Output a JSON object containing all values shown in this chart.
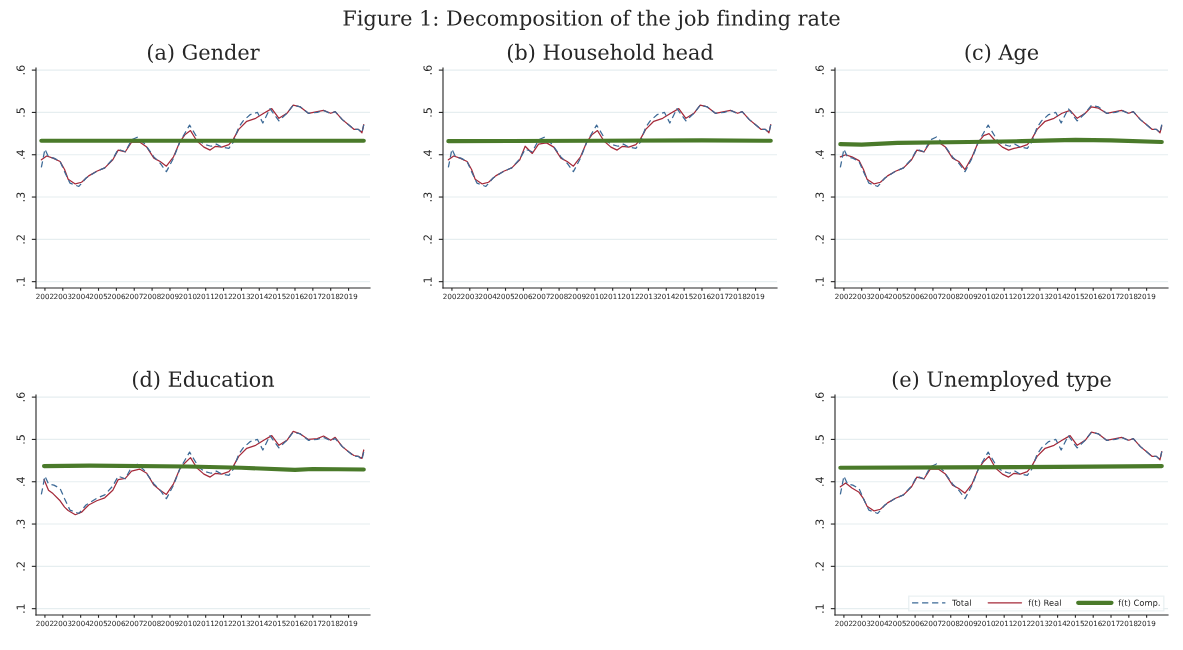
{
  "chart_data": [
    {
      "type": "line",
      "title": "(a) Gender",
      "annotations": [
        "Figure 1: Decomposition of the job finding rate"
      ],
      "grid": "y",
      "legend": false,
      "marker": "none",
      "xlim": [
        2001.5,
        2020.2
      ],
      "xticks": [
        2002,
        2003,
        2004,
        2005,
        2006,
        2007,
        2008,
        2009,
        2010,
        2011,
        2012,
        2013,
        2014,
        2015,
        2016,
        2017,
        2018,
        2019
      ],
      "ylim": [
        0.085,
        0.605
      ],
      "yticks": [
        {
          "value": 0.1,
          "label": ".1"
        },
        {
          "value": 0.2,
          "label": ".2"
        },
        {
          "value": 0.3,
          "label": ".3"
        },
        {
          "value": 0.4,
          "label": ".4"
        },
        {
          "value": 0.5,
          "label": ".5"
        },
        {
          "value": 0.6,
          "label": ".6"
        }
      ],
      "series": [
        {
          "color": "#3d6a96",
          "line_style": "dashed",
          "x": [
            2001.8,
            2002.0,
            2002.2,
            2002.5,
            2002.85,
            2003.1,
            2003.4,
            2003.9,
            2004.3,
            2004.9,
            2005.35,
            2005.8,
            2006.1,
            2006.5,
            2006.85,
            2007.2,
            2007.6,
            2008.1,
            2008.45,
            2008.8,
            2009.2,
            2009.55,
            2009.85,
            2010.1,
            2010.6,
            2010.9,
            2011.3,
            2011.6,
            2011.9,
            2012.3,
            2012.55,
            2012.85,
            2013.1,
            2013.5,
            2013.9,
            2014.2,
            2014.6,
            2015.1,
            2015.55,
            2015.9,
            2016.3,
            2016.75,
            2017.25,
            2017.6,
            2018.0,
            2018.25,
            2018.65,
            2019.0,
            2019.3,
            2019.55,
            2019.75,
            2019.85
          ],
          "values": [
            0.37,
            0.413,
            0.395,
            0.392,
            0.384,
            0.36,
            0.333,
            0.325,
            0.345,
            0.361,
            0.369,
            0.39,
            0.413,
            0.407,
            0.435,
            0.442,
            0.425,
            0.395,
            0.38,
            0.36,
            0.392,
            0.43,
            0.452,
            0.47,
            0.435,
            0.425,
            0.42,
            0.425,
            0.418,
            0.415,
            0.43,
            0.465,
            0.48,
            0.495,
            0.5,
            0.475,
            0.509,
            0.48,
            0.498,
            0.517,
            0.513,
            0.498,
            0.5,
            0.505,
            0.497,
            0.502,
            0.483,
            0.471,
            0.46,
            0.46,
            0.452,
            0.471
          ]
        },
        {
          "color": "#a52a3a",
          "line_style": "solid",
          "x": [
            2001.8,
            2002.1,
            2002.45,
            2002.85,
            2003.1,
            2003.3,
            2003.7,
            2004.05,
            2004.45,
            2004.9,
            2005.35,
            2005.8,
            2006.1,
            2006.5,
            2006.85,
            2007.3,
            2007.7,
            2008.1,
            2008.45,
            2008.8,
            2009.2,
            2009.55,
            2009.85,
            2010.15,
            2010.5,
            2010.9,
            2011.25,
            2011.55,
            2011.9,
            2012.3,
            2012.55,
            2012.85,
            2013.3,
            2013.8,
            2014.25,
            2014.7,
            2015.1,
            2015.55,
            2015.9,
            2016.3,
            2016.75,
            2017.25,
            2017.6,
            2018.0,
            2018.25,
            2018.65,
            2019.0,
            2019.3,
            2019.55,
            2019.75,
            2019.85
          ],
          "values": [
            0.388,
            0.397,
            0.392,
            0.384,
            0.365,
            0.342,
            0.331,
            0.335,
            0.35,
            0.361,
            0.369,
            0.388,
            0.411,
            0.407,
            0.43,
            0.43,
            0.418,
            0.392,
            0.384,
            0.373,
            0.395,
            0.43,
            0.448,
            0.457,
            0.433,
            0.418,
            0.411,
            0.42,
            0.418,
            0.424,
            0.437,
            0.46,
            0.479,
            0.486,
            0.498,
            0.509,
            0.486,
            0.498,
            0.517,
            0.513,
            0.498,
            0.502,
            0.505,
            0.498,
            0.502,
            0.483,
            0.471,
            0.46,
            0.46,
            0.452,
            0.471
          ]
        },
        {
          "color": "#4a7a2a",
          "line_style": "solid",
          "x": [
            2001.8,
            2019.85
          ],
          "values": [
            0.433,
            0.433
          ]
        }
      ]
    },
    {
      "type": "line",
      "title": "(b) Household head",
      "grid": "y",
      "legend": false,
      "marker": "none",
      "xlim": [
        2001.5,
        2020.2
      ],
      "xticks": [
        2002,
        2003,
        2004,
        2005,
        2006,
        2007,
        2008,
        2009,
        2010,
        2011,
        2012,
        2013,
        2014,
        2015,
        2016,
        2017,
        2018,
        2019
      ],
      "ylim": [
        0.085,
        0.605
      ],
      "yticks": [
        {
          "value": 0.1,
          "label": ".1"
        },
        {
          "value": 0.2,
          "label": ".2"
        },
        {
          "value": 0.3,
          "label": ".3"
        },
        {
          "value": 0.4,
          "label": ".4"
        },
        {
          "value": 0.5,
          "label": ".5"
        },
        {
          "value": 0.6,
          "label": ".6"
        }
      ],
      "series": [
        {
          "color": "#3d6a96",
          "line_style": "dashed",
          "x": [
            2001.8,
            2002.0,
            2002.2,
            2002.5,
            2002.85,
            2003.1,
            2003.4,
            2003.9,
            2004.3,
            2004.9,
            2005.35,
            2005.8,
            2006.1,
            2006.5,
            2006.85,
            2007.2,
            2007.6,
            2008.1,
            2008.45,
            2008.8,
            2009.2,
            2009.55,
            2009.85,
            2010.1,
            2010.6,
            2010.9,
            2011.3,
            2011.6,
            2011.9,
            2012.3,
            2012.55,
            2012.85,
            2013.1,
            2013.5,
            2013.9,
            2014.2,
            2014.6,
            2015.1,
            2015.55,
            2015.9,
            2016.3,
            2016.75,
            2017.25,
            2017.6,
            2018.0,
            2018.25,
            2018.65,
            2019.0,
            2019.3,
            2019.55,
            2019.75,
            2019.85
          ],
          "values": [
            0.37,
            0.413,
            0.395,
            0.392,
            0.384,
            0.36,
            0.333,
            0.325,
            0.345,
            0.361,
            0.369,
            0.39,
            0.413,
            0.407,
            0.435,
            0.442,
            0.425,
            0.395,
            0.38,
            0.36,
            0.392,
            0.43,
            0.452,
            0.47,
            0.435,
            0.425,
            0.42,
            0.425,
            0.418,
            0.415,
            0.43,
            0.465,
            0.48,
            0.495,
            0.5,
            0.475,
            0.509,
            0.48,
            0.498,
            0.517,
            0.513,
            0.498,
            0.5,
            0.505,
            0.497,
            0.502,
            0.483,
            0.471,
            0.46,
            0.46,
            0.452,
            0.471
          ]
        },
        {
          "color": "#a52a3a",
          "line_style": "solid",
          "x": [
            2001.8,
            2002.1,
            2002.45,
            2002.85,
            2003.1,
            2003.3,
            2003.7,
            2004.05,
            2004.45,
            2004.9,
            2005.35,
            2005.8,
            2006.1,
            2006.5,
            2006.85,
            2007.3,
            2007.7,
            2008.1,
            2008.45,
            2008.8,
            2009.2,
            2009.55,
            2009.85,
            2010.15,
            2010.5,
            2010.9,
            2011.25,
            2011.55,
            2011.9,
            2012.3,
            2012.55,
            2012.85,
            2013.3,
            2013.8,
            2014.25,
            2014.7,
            2015.1,
            2015.55,
            2015.9,
            2016.3,
            2016.75,
            2017.25,
            2017.6,
            2018.0,
            2018.25,
            2018.65,
            2019.0,
            2019.3,
            2019.55,
            2019.75,
            2019.85
          ],
          "values": [
            0.388,
            0.397,
            0.392,
            0.384,
            0.365,
            0.342,
            0.331,
            0.335,
            0.35,
            0.361,
            0.369,
            0.388,
            0.42,
            0.403,
            0.425,
            0.428,
            0.418,
            0.392,
            0.384,
            0.373,
            0.395,
            0.43,
            0.448,
            0.457,
            0.433,
            0.418,
            0.411,
            0.42,
            0.418,
            0.424,
            0.437,
            0.46,
            0.479,
            0.486,
            0.498,
            0.509,
            0.486,
            0.498,
            0.517,
            0.513,
            0.498,
            0.502,
            0.505,
            0.498,
            0.502,
            0.483,
            0.471,
            0.46,
            0.46,
            0.452,
            0.471
          ]
        },
        {
          "color": "#4a7a2a",
          "line_style": "solid",
          "x": [
            2001.8,
            2010.0,
            2016.0,
            2019.85
          ],
          "values": [
            0.432,
            0.433,
            0.434,
            0.433
          ]
        }
      ]
    },
    {
      "type": "line",
      "title": "(c) Age",
      "grid": "y",
      "legend": false,
      "marker": "none",
      "xlim": [
        2001.5,
        2020.2
      ],
      "xticks": [
        2002,
        2003,
        2004,
        2005,
        2006,
        2007,
        2008,
        2009,
        2010,
        2011,
        2012,
        2013,
        2014,
        2015,
        2016,
        2017,
        2018,
        2019
      ],
      "ylim": [
        0.085,
        0.605
      ],
      "yticks": [
        {
          "value": 0.1,
          "label": ".1"
        },
        {
          "value": 0.2,
          "label": ".2"
        },
        {
          "value": 0.3,
          "label": ".3"
        },
        {
          "value": 0.4,
          "label": ".4"
        },
        {
          "value": 0.5,
          "label": ".5"
        },
        {
          "value": 0.6,
          "label": ".6"
        }
      ],
      "series": [
        {
          "color": "#3d6a96",
          "line_style": "dashed",
          "x": [
            2001.8,
            2002.0,
            2002.2,
            2002.5,
            2002.85,
            2003.1,
            2003.4,
            2003.9,
            2004.3,
            2004.9,
            2005.35,
            2005.8,
            2006.1,
            2006.5,
            2006.85,
            2007.2,
            2007.6,
            2008.1,
            2008.45,
            2008.8,
            2009.2,
            2009.55,
            2009.85,
            2010.1,
            2010.6,
            2010.9,
            2011.3,
            2011.6,
            2011.9,
            2012.3,
            2012.55,
            2012.85,
            2013.1,
            2013.5,
            2013.9,
            2014.2,
            2014.6,
            2015.1,
            2015.55,
            2015.9,
            2016.3,
            2016.75,
            2017.25,
            2017.6,
            2018.0,
            2018.25,
            2018.65,
            2019.0,
            2019.3,
            2019.55,
            2019.75,
            2019.85
          ],
          "values": [
            0.37,
            0.413,
            0.395,
            0.392,
            0.384,
            0.36,
            0.333,
            0.325,
            0.345,
            0.361,
            0.369,
            0.39,
            0.413,
            0.407,
            0.435,
            0.442,
            0.425,
            0.395,
            0.38,
            0.36,
            0.392,
            0.43,
            0.452,
            0.47,
            0.435,
            0.425,
            0.42,
            0.425,
            0.418,
            0.415,
            0.43,
            0.465,
            0.48,
            0.495,
            0.5,
            0.475,
            0.509,
            0.48,
            0.498,
            0.517,
            0.513,
            0.498,
            0.5,
            0.505,
            0.497,
            0.502,
            0.483,
            0.471,
            0.46,
            0.46,
            0.452,
            0.471
          ]
        },
        {
          "color": "#a52a3a",
          "line_style": "solid",
          "x": [
            2001.8,
            2002.1,
            2002.45,
            2002.85,
            2003.1,
            2003.3,
            2003.7,
            2004.05,
            2004.45,
            2004.9,
            2005.35,
            2005.8,
            2006.1,
            2006.5,
            2006.85,
            2007.3,
            2007.7,
            2008.1,
            2008.45,
            2008.8,
            2009.2,
            2009.55,
            2009.85,
            2010.15,
            2010.5,
            2010.9,
            2011.25,
            2011.55,
            2011.9,
            2012.3,
            2012.55,
            2012.85,
            2013.3,
            2013.8,
            2014.25,
            2014.7,
            2015.1,
            2015.55,
            2015.9,
            2016.3,
            2016.75,
            2017.25,
            2017.6,
            2018.0,
            2018.25,
            2018.65,
            2019.0,
            2019.3,
            2019.55,
            2019.75,
            2019.85
          ],
          "values": [
            0.395,
            0.4,
            0.395,
            0.386,
            0.365,
            0.342,
            0.331,
            0.335,
            0.35,
            0.361,
            0.369,
            0.388,
            0.411,
            0.407,
            0.43,
            0.43,
            0.418,
            0.392,
            0.384,
            0.365,
            0.395,
            0.43,
            0.445,
            0.45,
            0.433,
            0.418,
            0.411,
            0.415,
            0.418,
            0.424,
            0.437,
            0.46,
            0.479,
            0.486,
            0.498,
            0.505,
            0.486,
            0.498,
            0.513,
            0.51,
            0.498,
            0.502,
            0.505,
            0.498,
            0.502,
            0.483,
            0.471,
            0.46,
            0.46,
            0.452,
            0.468
          ]
        },
        {
          "color": "#4a7a2a",
          "line_style": "solid",
          "x": [
            2001.8,
            2003.0,
            2005.0,
            2009.0,
            2012.0,
            2015.0,
            2017.0,
            2019.85
          ],
          "values": [
            0.425,
            0.424,
            0.428,
            0.43,
            0.432,
            0.435,
            0.434,
            0.43
          ]
        }
      ]
    },
    {
      "type": "line",
      "title": "(d) Education",
      "grid": "y",
      "legend": false,
      "marker": "none",
      "xlim": [
        2001.5,
        2020.2
      ],
      "xticks": [
        2002,
        2003,
        2004,
        2005,
        2006,
        2007,
        2008,
        2009,
        2010,
        2011,
        2012,
        2013,
        2014,
        2015,
        2016,
        2017,
        2018,
        2019
      ],
      "ylim": [
        0.085,
        0.605
      ],
      "yticks": [
        {
          "value": 0.1,
          "label": ".1"
        },
        {
          "value": 0.2,
          "label": ".2"
        },
        {
          "value": 0.3,
          "label": ".3"
        },
        {
          "value": 0.4,
          "label": ".4"
        },
        {
          "value": 0.5,
          "label": ".5"
        },
        {
          "value": 0.6,
          "label": ".6"
        }
      ],
      "series": [
        {
          "color": "#3d6a96",
          "line_style": "dashed",
          "x": [
            2001.8,
            2002.0,
            2002.2,
            2002.5,
            2002.85,
            2003.1,
            2003.4,
            2003.9,
            2004.3,
            2004.9,
            2005.35,
            2005.8,
            2006.1,
            2006.5,
            2006.85,
            2007.2,
            2007.6,
            2008.1,
            2008.45,
            2008.8,
            2009.2,
            2009.55,
            2009.85,
            2010.1,
            2010.6,
            2010.9,
            2011.3,
            2011.6,
            2011.9,
            2012.3,
            2012.55,
            2012.85,
            2013.1,
            2013.5,
            2013.9,
            2014.2,
            2014.6,
            2015.1,
            2015.55,
            2015.9,
            2016.3,
            2016.75,
            2017.25,
            2017.6,
            2018.0,
            2018.25,
            2018.65,
            2019.0,
            2019.3,
            2019.55,
            2019.75,
            2019.85
          ],
          "values": [
            0.37,
            0.413,
            0.395,
            0.392,
            0.384,
            0.36,
            0.333,
            0.325,
            0.345,
            0.361,
            0.369,
            0.39,
            0.413,
            0.407,
            0.435,
            0.442,
            0.425,
            0.395,
            0.38,
            0.36,
            0.392,
            0.43,
            0.452,
            0.47,
            0.435,
            0.425,
            0.42,
            0.425,
            0.418,
            0.415,
            0.43,
            0.465,
            0.48,
            0.495,
            0.5,
            0.475,
            0.509,
            0.48,
            0.498,
            0.517,
            0.513,
            0.498,
            0.5,
            0.505,
            0.497,
            0.502,
            0.483,
            0.471,
            0.46,
            0.46,
            0.452,
            0.471
          ]
        },
        {
          "color": "#a52a3a",
          "line_style": "solid",
          "x": [
            2001.95,
            2002.2,
            2002.45,
            2002.85,
            2003.1,
            2003.3,
            2003.7,
            2004.05,
            2004.45,
            2004.9,
            2005.35,
            2005.8,
            2006.1,
            2006.5,
            2006.85,
            2007.3,
            2007.7,
            2008.1,
            2008.45,
            2008.8,
            2009.2,
            2009.55,
            2009.85,
            2010.15,
            2010.5,
            2010.9,
            2011.25,
            2011.55,
            2011.9,
            2012.3,
            2012.55,
            2012.85,
            2013.3,
            2013.8,
            2014.25,
            2014.7,
            2015.1,
            2015.55,
            2015.9,
            2016.3,
            2016.75,
            2017.25,
            2017.6,
            2018.0,
            2018.25,
            2018.65,
            2019.0,
            2019.3,
            2019.55,
            2019.75,
            2019.85
          ],
          "values": [
            0.405,
            0.38,
            0.372,
            0.355,
            0.34,
            0.332,
            0.322,
            0.328,
            0.345,
            0.355,
            0.362,
            0.38,
            0.405,
            0.408,
            0.425,
            0.43,
            0.42,
            0.392,
            0.38,
            0.37,
            0.395,
            0.43,
            0.445,
            0.457,
            0.433,
            0.418,
            0.411,
            0.42,
            0.418,
            0.424,
            0.437,
            0.46,
            0.479,
            0.486,
            0.498,
            0.509,
            0.486,
            0.498,
            0.519,
            0.513,
            0.5,
            0.502,
            0.508,
            0.498,
            0.505,
            0.483,
            0.471,
            0.462,
            0.46,
            0.455,
            0.475
          ]
        },
        {
          "color": "#4a7a2a",
          "line_style": "solid",
          "x": [
            2001.95,
            2004.5,
            2010.0,
            2013.0,
            2016.0,
            2017.0,
            2019.85
          ],
          "values": [
            0.437,
            0.438,
            0.436,
            0.433,
            0.428,
            0.43,
            0.429
          ]
        }
      ]
    },
    {
      "type": "line",
      "title": "(e) Unemployed type",
      "grid": "y",
      "legend": "bottom right",
      "marker": "none",
      "xlim": [
        2001.5,
        2020.2
      ],
      "xticks": [
        2002,
        2003,
        2004,
        2005,
        2006,
        2007,
        2008,
        2009,
        2010,
        2011,
        2012,
        2013,
        2014,
        2015,
        2016,
        2017,
        2018,
        2019
      ],
      "ylim": [
        0.085,
        0.605
      ],
      "yticks": [
        {
          "value": 0.1,
          "label": ".1"
        },
        {
          "value": 0.2,
          "label": ".2"
        },
        {
          "value": 0.3,
          "label": ".3"
        },
        {
          "value": 0.4,
          "label": ".4"
        },
        {
          "value": 0.5,
          "label": ".5"
        },
        {
          "value": 0.6,
          "label": ".6"
        }
      ],
      "series": [
        {
          "name": "Total",
          "color": "#3d6a96",
          "line_style": "dashed",
          "x": [
            2001.8,
            2002.0,
            2002.2,
            2002.5,
            2002.85,
            2003.1,
            2003.4,
            2003.9,
            2004.3,
            2004.9,
            2005.35,
            2005.8,
            2006.1,
            2006.5,
            2006.85,
            2007.2,
            2007.6,
            2008.1,
            2008.45,
            2008.8,
            2009.2,
            2009.55,
            2009.85,
            2010.1,
            2010.6,
            2010.9,
            2011.3,
            2011.6,
            2011.9,
            2012.3,
            2012.55,
            2012.85,
            2013.1,
            2013.5,
            2013.9,
            2014.2,
            2014.6,
            2015.1,
            2015.55,
            2015.9,
            2016.3,
            2016.75,
            2017.25,
            2017.6,
            2018.0,
            2018.25,
            2018.65,
            2019.0,
            2019.3,
            2019.55,
            2019.75,
            2019.85
          ],
          "values": [
            0.37,
            0.413,
            0.395,
            0.392,
            0.384,
            0.36,
            0.333,
            0.325,
            0.345,
            0.361,
            0.369,
            0.39,
            0.413,
            0.407,
            0.435,
            0.442,
            0.425,
            0.395,
            0.38,
            0.36,
            0.392,
            0.43,
            0.452,
            0.47,
            0.435,
            0.425,
            0.42,
            0.425,
            0.418,
            0.415,
            0.43,
            0.465,
            0.48,
            0.495,
            0.5,
            0.475,
            0.509,
            0.48,
            0.498,
            0.517,
            0.513,
            0.498,
            0.5,
            0.505,
            0.497,
            0.502,
            0.483,
            0.471,
            0.46,
            0.46,
            0.452,
            0.471
          ]
        },
        {
          "name": "f(t) Real",
          "color": "#a52a3a",
          "line_style": "solid",
          "x": [
            2001.8,
            2002.1,
            2002.45,
            2002.85,
            2003.1,
            2003.3,
            2003.7,
            2004.05,
            2004.45,
            2004.9,
            2005.35,
            2005.8,
            2006.1,
            2006.5,
            2006.85,
            2007.3,
            2007.7,
            2008.1,
            2008.45,
            2008.8,
            2009.2,
            2009.55,
            2009.85,
            2010.15,
            2010.5,
            2010.9,
            2011.25,
            2011.55,
            2011.9,
            2012.3,
            2012.55,
            2012.85,
            2013.3,
            2013.8,
            2014.25,
            2014.7,
            2015.1,
            2015.55,
            2015.9,
            2016.3,
            2016.75,
            2017.25,
            2017.6,
            2018.0,
            2018.25,
            2018.65,
            2019.0,
            2019.3,
            2019.55,
            2019.75,
            2019.85
          ],
          "values": [
            0.388,
            0.397,
            0.385,
            0.375,
            0.36,
            0.342,
            0.331,
            0.335,
            0.35,
            0.361,
            0.369,
            0.388,
            0.411,
            0.407,
            0.43,
            0.43,
            0.418,
            0.392,
            0.384,
            0.373,
            0.395,
            0.43,
            0.448,
            0.46,
            0.433,
            0.418,
            0.411,
            0.42,
            0.418,
            0.424,
            0.437,
            0.46,
            0.479,
            0.486,
            0.498,
            0.509,
            0.486,
            0.498,
            0.517,
            0.513,
            0.498,
            0.502,
            0.505,
            0.498,
            0.502,
            0.483,
            0.471,
            0.46,
            0.46,
            0.452,
            0.471
          ]
        },
        {
          "name": "f(t) Comp.",
          "color": "#4a7a2a",
          "line_style": "solid",
          "x": [
            2001.8,
            2008.0,
            2014.0,
            2019.85
          ],
          "values": [
            0.433,
            0.434,
            0.435,
            0.437
          ]
        }
      ]
    }
  ]
}
